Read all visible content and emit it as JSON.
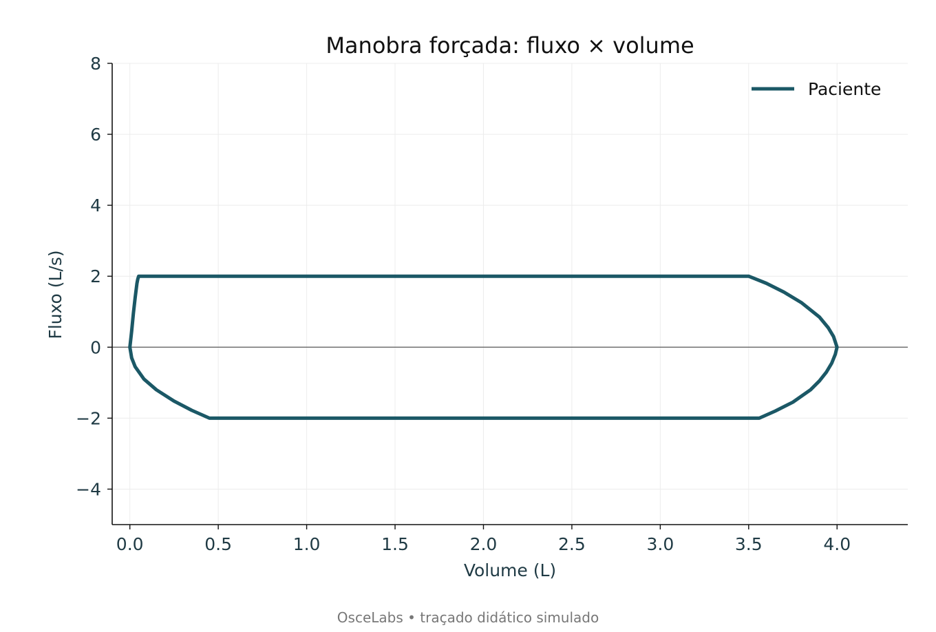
{
  "footer": "OsceLabs • traçado didático simulado",
  "chart_data": {
    "type": "line",
    "title": "Manobra forçada: fluxo × volume",
    "xlabel": "Volume (L)",
    "ylabel": "Fluxo (L/s)",
    "xlim": [
      -0.1,
      4.4
    ],
    "ylim": [
      -5,
      8
    ],
    "xticks": [
      0.0,
      0.5,
      1.0,
      1.5,
      2.0,
      2.5,
      3.0,
      3.5,
      4.0
    ],
    "xtick_labels": [
      "0.0",
      "0.5",
      "1.0",
      "1.5",
      "2.0",
      "2.5",
      "3.0",
      "3.5",
      "4.0"
    ],
    "yticks": [
      -4,
      -2,
      0,
      2,
      4,
      6,
      8
    ],
    "ytick_labels": [
      "−4",
      "−2",
      "0",
      "2",
      "4",
      "6",
      "8"
    ],
    "grid": true,
    "zero_line": true,
    "legend_position": "top-right",
    "colors": {
      "series": "#1b5866",
      "grid": "#ececec",
      "zero_line": "#666666",
      "axis": "#111111"
    },
    "series": [
      {
        "name": "Paciente",
        "x": [
          0.0,
          0.01,
          0.02,
          0.03,
          0.04,
          0.045,
          0.05,
          0.06,
          0.5,
          1.0,
          1.5,
          2.0,
          2.5,
          3.0,
          3.5,
          3.6,
          3.7,
          3.8,
          3.9,
          3.95,
          3.98,
          4.0,
          3.99,
          3.97,
          3.94,
          3.9,
          3.85,
          3.75,
          3.65,
          3.56,
          3.0,
          2.5,
          2.0,
          1.5,
          1.0,
          0.45,
          0.35,
          0.25,
          0.15,
          0.08,
          0.03,
          0.01,
          0.0
        ],
        "y": [
          0.0,
          0.45,
          0.95,
          1.4,
          1.8,
          1.92,
          2.0,
          2.0,
          2.0,
          2.0,
          2.0,
          2.0,
          2.0,
          2.0,
          2.0,
          1.8,
          1.55,
          1.25,
          0.85,
          0.55,
          0.3,
          0.0,
          -0.2,
          -0.45,
          -0.7,
          -0.95,
          -1.2,
          -1.55,
          -1.8,
          -2.0,
          -2.0,
          -2.0,
          -2.0,
          -2.0,
          -2.0,
          -2.0,
          -1.78,
          -1.52,
          -1.2,
          -0.9,
          -0.55,
          -0.3,
          0.0
        ]
      }
    ]
  }
}
